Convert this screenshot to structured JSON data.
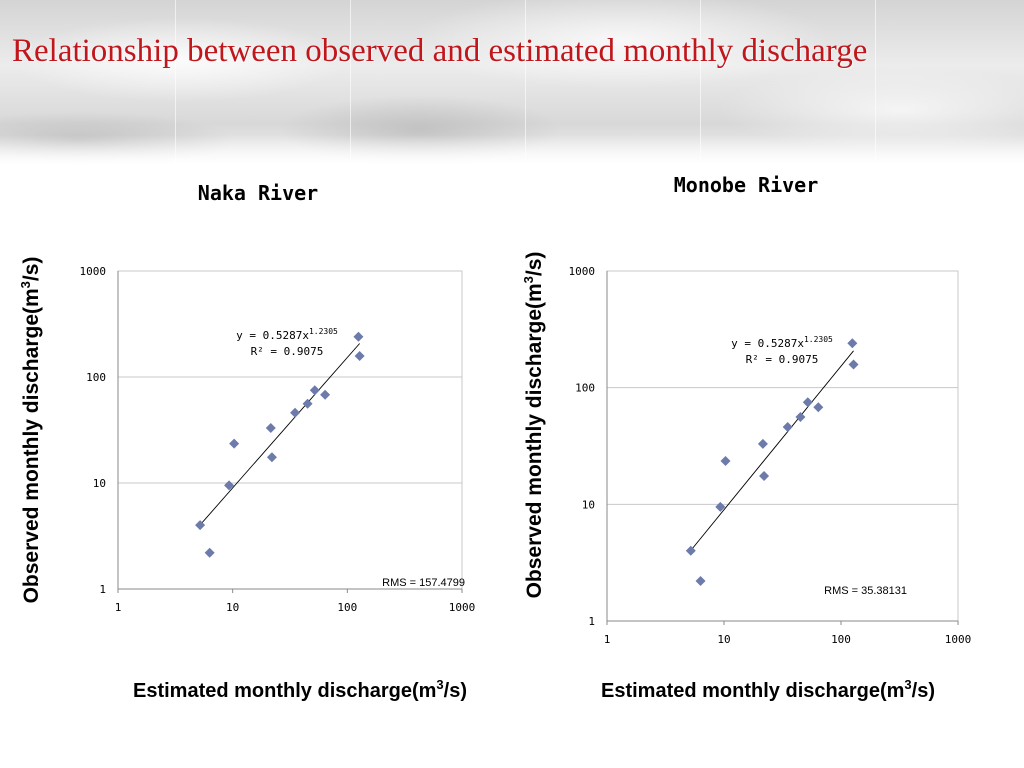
{
  "slide": {
    "title": "Relationship between observed and estimated monthly discharge"
  },
  "colors": {
    "title": "#c0161c",
    "marker": "#6d7bab",
    "gridline": "#c8c8c8",
    "fitline": "#000000"
  },
  "chart_data": [
    {
      "type": "scatter",
      "title": "Naka River",
      "xlabel": "Estimated monthly discharge(m3/s)",
      "ylabel": "Observed  monthly discharge(m3/s)",
      "xscale": "log",
      "yscale": "log",
      "xlim": [
        1,
        1000
      ],
      "ylim": [
        1,
        1000
      ],
      "x_ticks": [
        "1",
        "10",
        "100",
        "1000"
      ],
      "y_ticks": [
        "1",
        "10",
        "100",
        "1000"
      ],
      "grid": "horizontal",
      "series": [
        {
          "points": [
            {
              "x": 5.2,
              "y": 4.0
            },
            {
              "x": 6.3,
              "y": 2.2
            },
            {
              "x": 9.3,
              "y": 9.5
            },
            {
              "x": 10.3,
              "y": 23.5
            },
            {
              "x": 21.5,
              "y": 33.0
            },
            {
              "x": 22.0,
              "y": 17.5
            },
            {
              "x": 35.0,
              "y": 46.0
            },
            {
              "x": 45.0,
              "y": 56.0
            },
            {
              "x": 52.0,
              "y": 75.0
            },
            {
              "x": 64.0,
              "y": 68.0
            },
            {
              "x": 125.0,
              "y": 240.0
            },
            {
              "x": 128.0,
              "y": 158.0
            }
          ]
        }
      ],
      "trendline": {
        "type": "power",
        "equation": "y = 0.5287x",
        "exponent_label": "1.2305",
        "r2": "R² = 0.9075",
        "coef": 0.5287,
        "exp": 1.2305,
        "x_range": [
          5.2,
          128.0
        ]
      },
      "annotation": "RMS = 157.4799"
    },
    {
      "type": "scatter",
      "title": "Monobe River",
      "xlabel": "Estimated monthly discharge(m3/s)",
      "ylabel": "Observed  monthly discharge(m3/s)",
      "xscale": "log",
      "yscale": "log",
      "xlim": [
        1,
        1000
      ],
      "ylim": [
        1,
        1000
      ],
      "x_ticks": [
        "1",
        "10",
        "100",
        "1000"
      ],
      "y_ticks": [
        "1",
        "10",
        "100",
        "1000"
      ],
      "grid": "horizontal",
      "series": [
        {
          "points": [
            {
              "x": 5.2,
              "y": 4.0
            },
            {
              "x": 6.3,
              "y": 2.2
            },
            {
              "x": 9.3,
              "y": 9.5
            },
            {
              "x": 10.3,
              "y": 23.5
            },
            {
              "x": 21.5,
              "y": 33.0
            },
            {
              "x": 22.0,
              "y": 17.5
            },
            {
              "x": 35.0,
              "y": 46.0
            },
            {
              "x": 45.0,
              "y": 56.0
            },
            {
              "x": 52.0,
              "y": 75.0
            },
            {
              "x": 64.0,
              "y": 68.0
            },
            {
              "x": 125.0,
              "y": 240.0
            },
            {
              "x": 128.0,
              "y": 158.0
            }
          ]
        }
      ],
      "trendline": {
        "type": "power",
        "equation": "y = 0.5287x",
        "exponent_label": "1.2305",
        "r2": "R² = 0.9075",
        "coef": 0.5287,
        "exp": 1.2305,
        "x_range": [
          5.2,
          128.0
        ]
      },
      "annotation": "RMS = 35.38131"
    }
  ]
}
